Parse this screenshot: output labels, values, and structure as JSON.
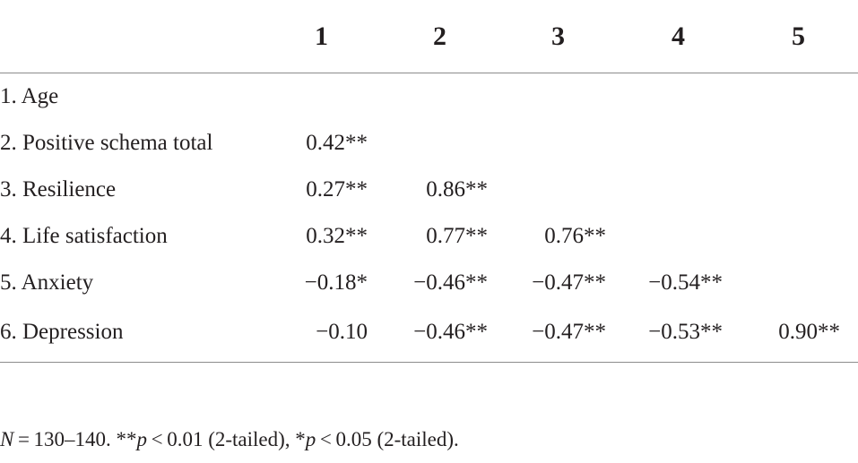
{
  "table": {
    "columns": [
      "",
      "1",
      "2",
      "3",
      "4",
      "5"
    ],
    "rows": [
      {
        "label": "1. Age",
        "values": [
          "",
          "",
          "",
          "",
          ""
        ]
      },
      {
        "label": "2. Positive schema total",
        "values": [
          "0.42**",
          "",
          "",
          "",
          ""
        ]
      },
      {
        "label": "3. Resilience",
        "values": [
          "0.27**",
          "0.86**",
          "",
          "",
          ""
        ]
      },
      {
        "label": "4. Life satisfaction",
        "values": [
          "0.32**",
          "0.77**",
          "0.76**",
          "",
          ""
        ]
      },
      {
        "label": "5. Anxiety",
        "values": [
          "−0.18*",
          "−0.46**",
          "−0.47**",
          "−0.54**",
          ""
        ]
      },
      {
        "label": "6. Depression",
        "values": [
          "−0.10",
          "−0.46**",
          "−0.47**",
          "−0.53**",
          "0.90**"
        ]
      }
    ]
  },
  "note": {
    "n_italic": "N",
    "n_text": " = 130–140. **",
    "p1_italic": "p",
    "p1_text": " < 0.01 (2-tailed), *",
    "p2_italic": "p",
    "p2_text": " < 0.05 (2-tailed)."
  }
}
